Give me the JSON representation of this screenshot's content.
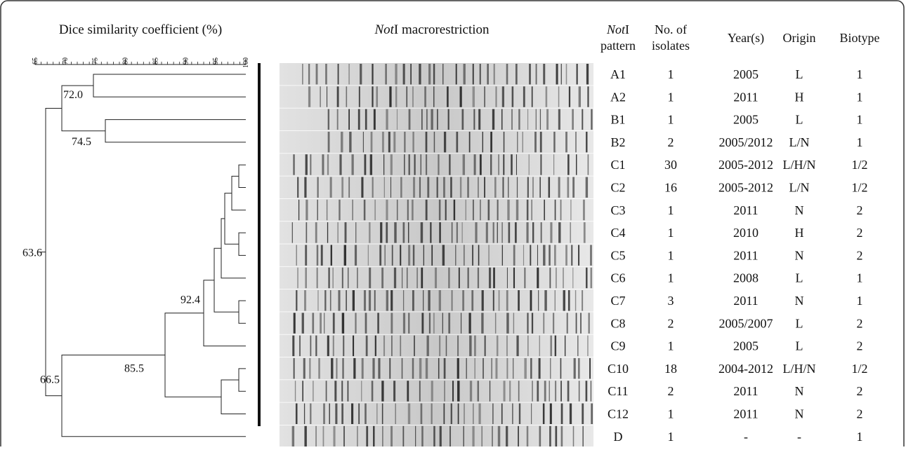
{
  "dendrogram": {
    "axis_title": "Dice similarity coefficient (%)",
    "ticks": [
      65,
      70,
      75,
      80,
      85,
      90,
      95,
      100
    ],
    "node_labels": [
      "72.0",
      "74.5",
      "63.6",
      "66.5",
      "92.4",
      "85.5"
    ]
  },
  "gel": {
    "title": {
      "italic": "Not",
      "text": "I macrorestriction"
    }
  },
  "table": {
    "header": [
      {
        "italic": "Not",
        "text": "I",
        "line2": "pattern"
      },
      {
        "lines": [
          "No. of",
          "isolates"
        ]
      },
      {
        "lines": [
          "Year(s)"
        ]
      },
      {
        "lines": [
          "Origin"
        ]
      },
      {
        "lines": [
          "Biotype"
        ]
      }
    ],
    "rows": [
      [
        "A1",
        "1",
        "2005",
        "L",
        "1"
      ],
      [
        "A2",
        "1",
        "2011",
        "H",
        "1"
      ],
      [
        "B1",
        "1",
        "2005",
        "L",
        "1"
      ],
      [
        "B2",
        "2",
        "2005/2012",
        "L/N",
        "1"
      ],
      [
        "C1",
        "30",
        "2005-2012",
        "L/H/N",
        "1/2"
      ],
      [
        "C2",
        "16",
        "2005-2012",
        "L/N",
        "1/2"
      ],
      [
        "C3",
        "1",
        "2011",
        "N",
        "2"
      ],
      [
        "C4",
        "1",
        "2010",
        "H",
        "2"
      ],
      [
        "C5",
        "1",
        "2011",
        "N",
        "2"
      ],
      [
        "C6",
        "1",
        "2008",
        "L",
        "1"
      ],
      [
        "C7",
        "3",
        "2011",
        "N",
        "1"
      ],
      [
        "C8",
        "2",
        "2005/2007",
        "L",
        "2"
      ],
      [
        "C9",
        "1",
        "2005",
        "L",
        "2"
      ],
      [
        "C10",
        "18",
        "2004-2012",
        "L/H/N",
        "1/2"
      ],
      [
        "C11",
        "2",
        "2011",
        "N",
        "2"
      ],
      [
        "C12",
        "1",
        "2011",
        "N",
        "2"
      ],
      [
        "D",
        "1",
        "-",
        "-",
        "1"
      ]
    ]
  }
}
